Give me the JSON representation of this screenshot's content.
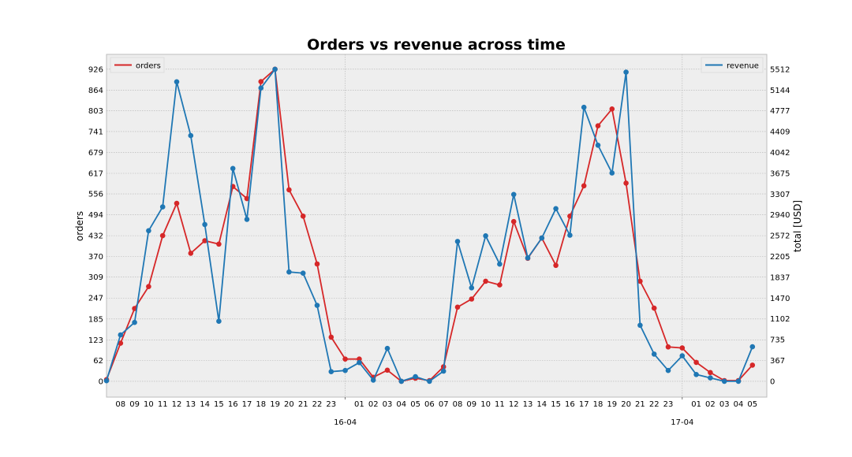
{
  "chart_data": {
    "type": "line",
    "title": "Orders vs revenue across time",
    "xlabel": "",
    "ylabel_left": "orders",
    "ylabel_right": "total [USD]",
    "x_ticks": [
      "08",
      "09",
      "10",
      "11",
      "12",
      "13",
      "14",
      "15",
      "16",
      "17",
      "18",
      "19",
      "20",
      "21",
      "22",
      "23",
      "01",
      "02",
      "03",
      "04",
      "05",
      "06",
      "07",
      "08",
      "09",
      "10",
      "11",
      "12",
      "13",
      "14",
      "15",
      "16",
      "17",
      "18",
      "19",
      "20",
      "21",
      "22",
      "23",
      "01",
      "02",
      "03",
      "04",
      "05"
    ],
    "date_labels": [
      {
        "label": "16-04",
        "after_tick": "23"
      },
      {
        "label": "17-04",
        "after_tick": "23"
      }
    ],
    "y_left_ticks": [
      "0",
      "62",
      "123",
      "185",
      "247",
      "309",
      "370",
      "432",
      "494",
      "556",
      "617",
      "679",
      "741",
      "803",
      "864",
      "926"
    ],
    "y_right_ticks": [
      "0",
      "367",
      "735",
      "1102",
      "1470",
      "1837",
      "2205",
      "2572",
      "2940",
      "3307",
      "3675",
      "4042",
      "4409",
      "4777",
      "5144",
      "5512"
    ],
    "y_left_lim": [
      -47,
      970
    ],
    "y_right_lim": [
      -280,
      5775
    ],
    "grid": true,
    "legend_left": "top-left",
    "legend_right": "top-right",
    "series": [
      {
        "name": "orders",
        "axis": "left",
        "color": "#d62728",
        "x": [
          "07",
          "08",
          "09",
          "10",
          "11",
          "12",
          "13",
          "14",
          "15",
          "16",
          "17",
          "18",
          "19",
          "20",
          "21",
          "22",
          "23",
          "00",
          "01",
          "02",
          "03",
          "04",
          "05",
          "06",
          "07",
          "08",
          "09",
          "10",
          "11",
          "12",
          "13",
          "14",
          "15",
          "16",
          "17",
          "18",
          "19",
          "20",
          "21",
          "22",
          "23",
          "00",
          "01",
          "02",
          "03",
          "04",
          "05"
        ],
        "values": [
          5,
          113,
          216,
          281,
          432,
          528,
          380,
          417,
          407,
          578,
          542,
          889,
          926,
          568,
          490,
          348,
          131,
          66,
          66,
          12,
          33,
          0,
          9,
          2,
          43,
          220,
          244,
          297,
          286,
          474,
          365,
          425,
          344,
          490,
          580,
          758,
          808,
          588,
          297,
          217,
          102,
          99,
          56,
          26,
          2,
          2,
          48
        ]
      },
      {
        "name": "revenue",
        "axis": "right",
        "color": "#1f77b4",
        "x": [
          "07",
          "08",
          "09",
          "10",
          "11",
          "12",
          "13",
          "14",
          "15",
          "16",
          "17",
          "18",
          "19",
          "20",
          "21",
          "22",
          "23",
          "00",
          "01",
          "02",
          "03",
          "04",
          "05",
          "06",
          "07",
          "08",
          "09",
          "10",
          "11",
          "12",
          "13",
          "14",
          "15",
          "16",
          "17",
          "18",
          "19",
          "20",
          "21",
          "22",
          "23",
          "00",
          "01",
          "02",
          "03",
          "04",
          "05"
        ],
        "values": [
          10,
          820,
          1040,
          2660,
          3080,
          5290,
          4340,
          2770,
          1060,
          3760,
          2860,
          5180,
          5512,
          1930,
          1910,
          1340,
          170,
          190,
          330,
          20,
          580,
          0,
          80,
          0,
          180,
          2470,
          1650,
          2570,
          2070,
          3300,
          2180,
          2530,
          3050,
          2580,
          4840,
          4170,
          3680,
          5460,
          990,
          480,
          190,
          450,
          120,
          60,
          0,
          0,
          610
        ]
      }
    ]
  }
}
